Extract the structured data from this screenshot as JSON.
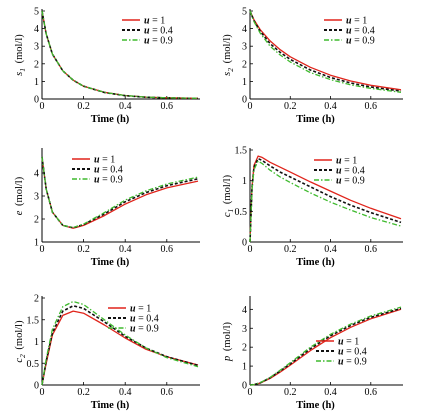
{
  "series_style": [
    {
      "name": "u = 1",
      "var": "u",
      "value": "1",
      "color": "#e0241b",
      "dash": "",
      "width": 1.3
    },
    {
      "name": "u = 0.4",
      "var": "u",
      "value": "0.4",
      "color": "#111111",
      "dash": "3,2",
      "width": 1.6
    },
    {
      "name": "u = 0.9",
      "var": "u",
      "value": "0.9",
      "color": "#3fba2e",
      "dash": "5,2,1.5,2",
      "width": 1.3
    }
  ],
  "chart_data": [
    {
      "type": "line",
      "id": "s1",
      "ylabel": "s",
      "ylabel_sub": "1",
      "ylabel_unit": "(mol/l)",
      "xlabel": "Time (h)",
      "xlim": [
        0,
        0.75
      ],
      "ylim": [
        0,
        5
      ],
      "xticks": [
        "0",
        "0.2",
        "0.4",
        "0.6"
      ],
      "xtick_values": [
        0,
        0.2,
        0.4,
        0.6
      ],
      "yticks": [
        "0",
        "1",
        "2",
        "3",
        "4",
        "5"
      ],
      "ytick_values": [
        0,
        1,
        2,
        3,
        4,
        5
      ],
      "legend": "top-right",
      "x": [
        0,
        0.02,
        0.05,
        0.1,
        0.15,
        0.2,
        0.3,
        0.4,
        0.5,
        0.6,
        0.75
      ],
      "series": [
        {
          "name": "u = 1",
          "values": [
            5.0,
            3.7,
            2.55,
            1.6,
            1.07,
            0.73,
            0.38,
            0.2,
            0.11,
            0.07,
            0.04
          ]
        },
        {
          "name": "u = 0.4",
          "values": [
            5.0,
            3.7,
            2.55,
            1.6,
            1.07,
            0.73,
            0.37,
            0.19,
            0.1,
            0.06,
            0.03
          ]
        },
        {
          "name": "u = 0.9",
          "values": [
            5.0,
            3.7,
            2.55,
            1.6,
            1.07,
            0.73,
            0.38,
            0.2,
            0.11,
            0.07,
            0.04
          ]
        }
      ]
    },
    {
      "type": "line",
      "id": "s2",
      "ylabel": "s",
      "ylabel_sub": "2",
      "ylabel_unit": "(mol/l)",
      "xlabel": "Time (h)",
      "xlim": [
        0,
        0.75
      ],
      "ylim": [
        0,
        5
      ],
      "xticks": [
        "0",
        "0.2",
        "0.4",
        "0.6"
      ],
      "xtick_values": [
        0,
        0.2,
        0.4,
        0.6
      ],
      "yticks": [
        "0",
        "1",
        "2",
        "3",
        "4",
        "5"
      ],
      "ytick_values": [
        0,
        1,
        2,
        3,
        4,
        5
      ],
      "legend": "top-right",
      "x": [
        0,
        0.02,
        0.05,
        0.1,
        0.15,
        0.2,
        0.3,
        0.4,
        0.5,
        0.6,
        0.75
      ],
      "series": [
        {
          "name": "u = 1",
          "values": [
            5.0,
            4.5,
            3.95,
            3.3,
            2.8,
            2.4,
            1.8,
            1.35,
            1.02,
            0.78,
            0.52
          ]
        },
        {
          "name": "u = 0.4",
          "values": [
            5.0,
            4.45,
            3.85,
            3.15,
            2.65,
            2.25,
            1.65,
            1.22,
            0.91,
            0.68,
            0.45
          ]
        },
        {
          "name": "u = 0.9",
          "values": [
            5.0,
            4.4,
            3.75,
            3.0,
            2.5,
            2.1,
            1.5,
            1.1,
            0.8,
            0.6,
            0.38
          ]
        }
      ]
    },
    {
      "type": "line",
      "id": "e",
      "ylabel": "e",
      "ylabel_sub": "",
      "ylabel_unit": "(mol/l)",
      "xlabel": "Time (h)",
      "xlim": [
        0,
        0.75
      ],
      "ylim": [
        1,
        5
      ],
      "xticks": [
        "0",
        "0.2",
        "0.4",
        "0.6"
      ],
      "xtick_values": [
        0,
        0.2,
        0.4,
        0.6
      ],
      "yticks": [
        "1",
        "2",
        "3",
        "4"
      ],
      "ytick_values": [
        1,
        2,
        3,
        4
      ],
      "legend": "top-left",
      "x": [
        0,
        0.02,
        0.05,
        0.1,
        0.15,
        0.2,
        0.3,
        0.4,
        0.5,
        0.6,
        0.75
      ],
      "series": [
        {
          "name": "u = 1",
          "values": [
            4.7,
            3.3,
            2.3,
            1.72,
            1.6,
            1.72,
            2.15,
            2.65,
            3.05,
            3.35,
            3.65
          ]
        },
        {
          "name": "u = 0.4",
          "values": [
            4.7,
            3.3,
            2.3,
            1.72,
            1.62,
            1.76,
            2.22,
            2.75,
            3.15,
            3.45,
            3.75
          ]
        },
        {
          "name": "u = 0.9",
          "values": [
            4.7,
            3.3,
            2.3,
            1.72,
            1.63,
            1.78,
            2.28,
            2.82,
            3.22,
            3.52,
            3.82
          ]
        }
      ]
    },
    {
      "type": "line",
      "id": "c1",
      "ylabel": "c",
      "ylabel_sub": "1",
      "ylabel_unit": "(mol/l)",
      "xlabel": "Time (h)",
      "xlim": [
        0,
        0.75
      ],
      "ylim": [
        0,
        1.5
      ],
      "xticks": [
        "0",
        "0.2",
        "0.4",
        "0.6"
      ],
      "xtick_values": [
        0,
        0.2,
        0.4,
        0.6
      ],
      "yticks": [
        "0",
        "0.5",
        "1",
        "1.5"
      ],
      "ytick_values": [
        0,
        0.5,
        1,
        1.5
      ],
      "legend": "top-right",
      "x": [
        0,
        0.01,
        0.02,
        0.04,
        0.06,
        0.1,
        0.15,
        0.2,
        0.3,
        0.4,
        0.5,
        0.6,
        0.75
      ],
      "series": [
        {
          "name": "u = 1",
          "values": [
            0,
            0.9,
            1.25,
            1.4,
            1.38,
            1.3,
            1.22,
            1.14,
            0.98,
            0.83,
            0.68,
            0.55,
            0.38
          ]
        },
        {
          "name": "u = 0.4",
          "values": [
            0,
            0.88,
            1.22,
            1.36,
            1.33,
            1.24,
            1.14,
            1.06,
            0.9,
            0.74,
            0.6,
            0.48,
            0.32
          ]
        },
        {
          "name": "u = 0.9",
          "values": [
            0,
            0.85,
            1.18,
            1.32,
            1.28,
            1.17,
            1.06,
            0.97,
            0.8,
            0.65,
            0.52,
            0.4,
            0.26
          ]
        }
      ]
    },
    {
      "type": "line",
      "id": "c2",
      "ylabel": "c",
      "ylabel_sub": "2",
      "ylabel_unit": "(mol/l)",
      "xlabel": "Time (h)",
      "xlim": [
        0,
        0.75
      ],
      "ylim": [
        0,
        2
      ],
      "xticks": [
        "0",
        "0.2",
        "0.4",
        "0.6"
      ],
      "xtick_values": [
        0,
        0.2,
        0.4,
        0.6
      ],
      "yticks": [
        "0",
        "0.5",
        "1",
        "1.5",
        "2"
      ],
      "ytick_values": [
        0,
        0.5,
        1,
        1.5,
        2
      ],
      "legend": "top-right",
      "x": [
        0,
        0.02,
        0.05,
        0.1,
        0.15,
        0.2,
        0.3,
        0.4,
        0.5,
        0.6,
        0.75
      ],
      "series": [
        {
          "name": "u = 1",
          "values": [
            0,
            0.5,
            1.15,
            1.6,
            1.7,
            1.65,
            1.38,
            1.08,
            0.82,
            0.65,
            0.46
          ]
        },
        {
          "name": "u = 0.4",
          "values": [
            0,
            0.55,
            1.2,
            1.7,
            1.82,
            1.76,
            1.45,
            1.12,
            0.85,
            0.65,
            0.45
          ]
        },
        {
          "name": "u = 0.9",
          "values": [
            0,
            0.6,
            1.28,
            1.8,
            1.92,
            1.85,
            1.5,
            1.15,
            0.85,
            0.63,
            0.42
          ]
        }
      ]
    },
    {
      "type": "line",
      "id": "p",
      "ylabel": "p",
      "ylabel_sub": "",
      "ylabel_unit": "(mol/l)",
      "xlabel": "Time (h)",
      "xlim": [
        0,
        0.75
      ],
      "ylim": [
        0,
        4.6
      ],
      "xticks": [
        "0",
        "0.2",
        "0.4",
        "0.6"
      ],
      "xtick_values": [
        0,
        0.2,
        0.4,
        0.6
      ],
      "yticks": [
        "0",
        "1",
        "2",
        "3",
        "4"
      ],
      "ytick_values": [
        0,
        1,
        2,
        3,
        4
      ],
      "legend": "bottom-right",
      "x": [
        0,
        0.02,
        0.05,
        0.1,
        0.15,
        0.2,
        0.3,
        0.4,
        0.5,
        0.6,
        0.75
      ],
      "series": [
        {
          "name": "u = 1",
          "values": [
            0,
            0.02,
            0.1,
            0.35,
            0.68,
            1.05,
            1.82,
            2.5,
            3.05,
            3.5,
            4.0
          ]
        },
        {
          "name": "u = 0.4",
          "values": [
            0,
            0.02,
            0.11,
            0.38,
            0.74,
            1.12,
            1.92,
            2.6,
            3.15,
            3.58,
            4.05
          ]
        },
        {
          "name": "u = 0.9",
          "values": [
            0,
            0.02,
            0.12,
            0.4,
            0.78,
            1.18,
            2.0,
            2.68,
            3.22,
            3.65,
            4.12
          ]
        }
      ]
    }
  ]
}
